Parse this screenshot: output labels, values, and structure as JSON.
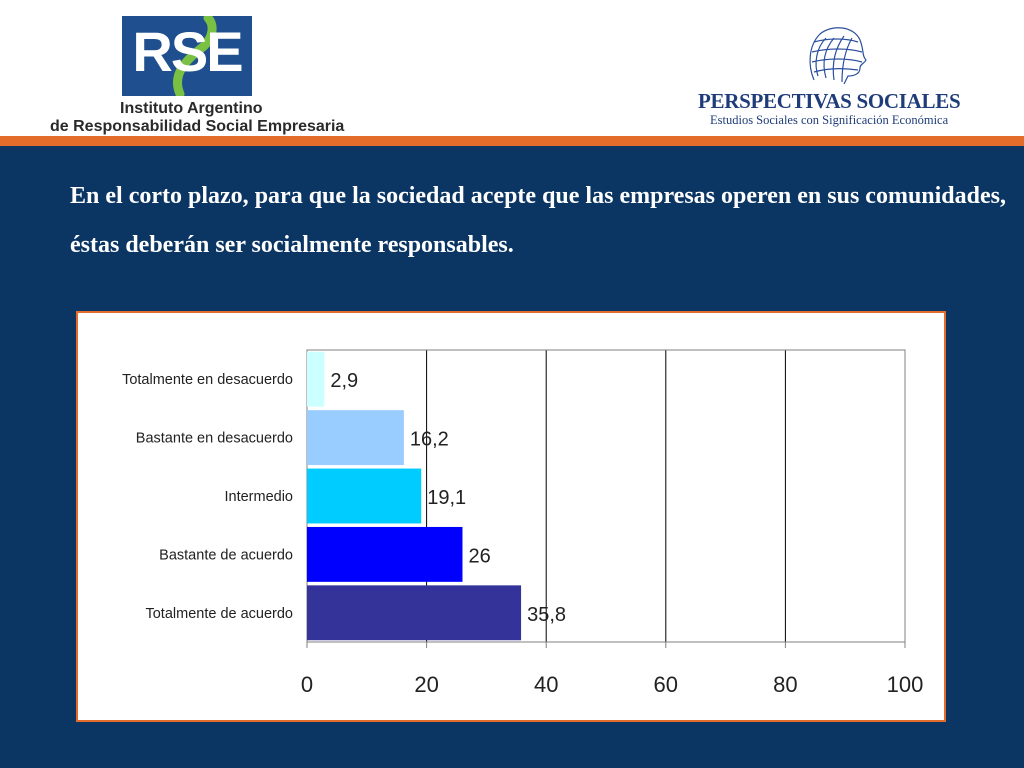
{
  "header": {
    "rse_logo": {
      "mark": "RSE",
      "line1": "Instituto Argentino",
      "line2": "de Responsabilidad Social Empresaria"
    },
    "perspectivas_logo": {
      "title": "PERSPECTIVAS SOCIALES",
      "subtitle": "Estudios Sociales con Significación Económica"
    }
  },
  "headline": "En el corto plazo, para que la sociedad acepte que las empresas operen en sus comunidades, éstas deberán ser socialmente responsables.",
  "colors": {
    "background": "#0b3563",
    "accent": "#e36c2a"
  },
  "chart_data": {
    "type": "bar",
    "orientation": "horizontal",
    "categories": [
      "Totalmente en desacuerdo",
      "Bastante en desacuerdo",
      "Intermedio",
      "Bastante de acuerdo",
      "Totalmente de acuerdo"
    ],
    "values": [
      2.9,
      16.2,
      19.1,
      26,
      35.8
    ],
    "value_labels": [
      "2,9",
      "16,2",
      "19,1",
      "26",
      "35,8"
    ],
    "colors": [
      "#ccffff",
      "#99ccff",
      "#00ccff",
      "#0000ff",
      "#333399"
    ],
    "xlim": [
      0,
      100
    ],
    "xticks": [
      0,
      20,
      40,
      60,
      80,
      100
    ],
    "xtick_labels": [
      "0",
      "20",
      "40",
      "60",
      "80",
      "100"
    ],
    "grid": true,
    "legend": "none",
    "title": "",
    "xlabel": "",
    "ylabel": ""
  }
}
